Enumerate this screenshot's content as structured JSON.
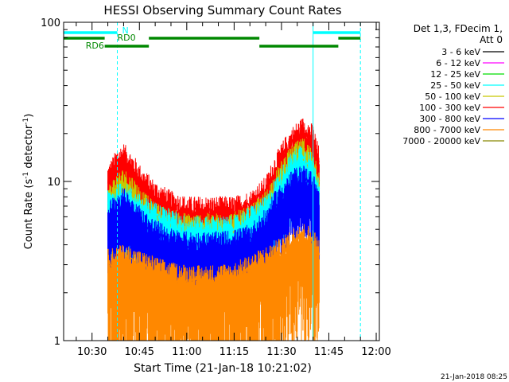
{
  "chart_data": {
    "type": "line",
    "title": "HESSI Observing Summary Count Rates",
    "xlabel": "Start Time (21-Jan-18 10:21:02)",
    "ylabel_main": "Count Rate (s",
    "ylabel_sup1": "-1",
    "ylabel_mid": " detector",
    "ylabel_sup2": "-1",
    "ylabel_end": ")",
    "y_scale": "log",
    "ylim": [
      1,
      100
    ],
    "xlim": [
      "10:21",
      "12:01"
    ],
    "y_ticks": [
      "1",
      "10",
      "100"
    ],
    "x_ticks": [
      "10:30",
      "10:45",
      "11:00",
      "11:15",
      "11:30",
      "11:45",
      "12:00"
    ],
    "legend_header_line1": "Det 1,3, FDecim 1,",
    "legend_header_line2": "Att 0",
    "legend_placement": "right",
    "series": [
      {
        "name": "3 - 6 keV",
        "color": "#000000"
      },
      {
        "name": "6 - 12 keV",
        "color": "#ff00ff"
      },
      {
        "name": "12 - 25 keV",
        "color": "#00dd00"
      },
      {
        "name": "25 - 50 keV",
        "color": "#00ffff"
      },
      {
        "name": "50 - 100 keV",
        "color": "#c8c800"
      },
      {
        "name": "100 - 300 keV",
        "color": "#ff0000"
      },
      {
        "name": "300 - 800 keV",
        "color": "#0000ff"
      },
      {
        "name": "800 - 7000 keV",
        "color": "#ff8800"
      },
      {
        "name": "7000 - 20000 keV",
        "color": "#888800"
      }
    ],
    "bands": [
      {
        "name": "100 - 300 keV",
        "points": [
          [
            "10:35",
            9.5
          ],
          [
            "10:38",
            12
          ],
          [
            "10:40",
            13
          ],
          [
            "10:43",
            11
          ],
          [
            "10:46",
            9
          ],
          [
            "10:50",
            7.5
          ],
          [
            "10:55",
            6.5
          ],
          [
            "11:00",
            6
          ],
          [
            "11:05",
            6
          ],
          [
            "11:10",
            6
          ],
          [
            "11:15",
            6
          ],
          [
            "11:20",
            6.5
          ],
          [
            "11:25",
            8
          ],
          [
            "11:28",
            11
          ],
          [
            "11:31",
            14
          ],
          [
            "11:34",
            17
          ],
          [
            "11:37",
            19
          ],
          [
            "11:40",
            17
          ],
          [
            "11:42",
            12
          ]
        ]
      },
      {
        "name": "50 - 100 keV",
        "points": [
          [
            "10:35",
            7
          ],
          [
            "10:38",
            8.5
          ],
          [
            "10:40",
            9
          ],
          [
            "10:43",
            8
          ],
          [
            "10:46",
            6.5
          ],
          [
            "10:50",
            5.5
          ],
          [
            "10:55",
            5
          ],
          [
            "11:00",
            4.7
          ],
          [
            "11:05",
            4.7
          ],
          [
            "11:10",
            4.7
          ],
          [
            "11:15",
            4.8
          ],
          [
            "11:20",
            5.2
          ],
          [
            "11:25",
            6.5
          ],
          [
            "11:28",
            8.5
          ],
          [
            "11:31",
            11
          ],
          [
            "11:34",
            13
          ],
          [
            "11:37",
            14
          ],
          [
            "11:40",
            12
          ],
          [
            "11:42",
            9
          ]
        ]
      },
      {
        "name": "25 - 50 keV",
        "points": [
          [
            "10:35",
            6.5
          ],
          [
            "10:40",
            7.5
          ],
          [
            "10:46",
            6
          ],
          [
            "11:00",
            4.5
          ],
          [
            "11:15",
            4.5
          ],
          [
            "11:25",
            6
          ],
          [
            "11:31",
            10
          ],
          [
            "11:36",
            13
          ],
          [
            "11:40",
            11
          ],
          [
            "11:42",
            8
          ]
        ]
      },
      {
        "name": "300 - 800 keV",
        "points": [
          [
            "10:35",
            5.5
          ],
          [
            "10:38",
            6.5
          ],
          [
            "10:40",
            6.8
          ],
          [
            "10:43",
            6
          ],
          [
            "10:46",
            5
          ],
          [
            "10:50",
            4.3
          ],
          [
            "10:55",
            3.8
          ],
          [
            "11:00",
            3.6
          ],
          [
            "11:05",
            3.6
          ],
          [
            "11:10",
            3.6
          ],
          [
            "11:15",
            3.7
          ],
          [
            "11:20",
            4
          ],
          [
            "11:25",
            5
          ],
          [
            "11:28",
            6.5
          ],
          [
            "11:31",
            7.8
          ],
          [
            "11:34",
            9
          ],
          [
            "11:37",
            9.5
          ],
          [
            "11:40",
            8.5
          ],
          [
            "11:42",
            6.5
          ]
        ]
      },
      {
        "name": "800 - 7000 keV",
        "points": [
          [
            "10:35",
            2.8
          ],
          [
            "10:40",
            3
          ],
          [
            "10:46",
            2.7
          ],
          [
            "10:55",
            2.3
          ],
          [
            "11:05",
            2.2
          ],
          [
            "11:15",
            2.3
          ],
          [
            "11:25",
            2.9
          ],
          [
            "11:31",
            3.4
          ],
          [
            "11:36",
            4.2
          ],
          [
            "11:40",
            3.8
          ],
          [
            "11:42",
            3.2
          ]
        ]
      }
    ],
    "segments": [
      {
        "label": "N",
        "color": "#00ffff",
        "ranks": 0,
        "ranges": [
          [
            "10:21",
            "10:38"
          ],
          [
            "11:40",
            "11:55"
          ]
        ]
      },
      {
        "label": "RD0",
        "color": "#008800",
        "ranks": 1,
        "ranges": [
          [
            "10:21",
            "10:34"
          ],
          [
            "10:48",
            "11:23"
          ],
          [
            "11:48",
            "11:55"
          ]
        ]
      },
      {
        "label": "RD6",
        "color": "#008800",
        "ranks": 2,
        "ranges": [
          [
            "10:34",
            "10:48"
          ],
          [
            "11:23",
            "11:48"
          ]
        ]
      }
    ],
    "vertical_markers": [
      {
        "x": "10:21",
        "style": "solid",
        "color": "#00ffff"
      },
      {
        "x": "10:38",
        "style": "dashed",
        "color": "#00ffff"
      },
      {
        "x": "11:40",
        "style": "solid",
        "color": "#00ffff"
      },
      {
        "x": "11:55",
        "style": "dashed",
        "color": "#00ffff"
      }
    ]
  },
  "footer_timestamp": "21-Jan-2018 08:25"
}
